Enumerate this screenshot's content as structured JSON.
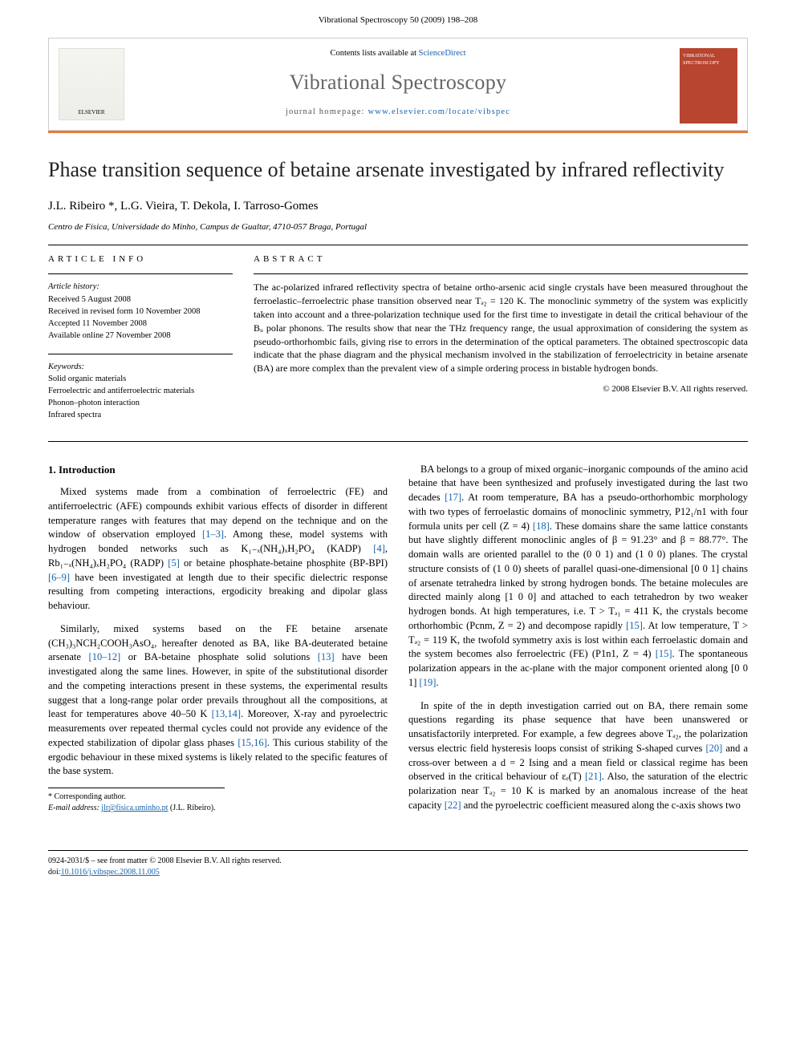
{
  "header": {
    "running": "Vibrational Spectroscopy 50 (2009) 198–208",
    "contents_prefix": "Contents lists available at ",
    "contents_link": "ScienceDirect",
    "journal": "Vibrational Spectroscopy",
    "homepage_prefix": "journal homepage: ",
    "homepage": "www.elsevier.com/locate/vibspec",
    "elsevier": "ELSEVIER",
    "cover_text": "VIBRATIONAL SPECTROSCOPY"
  },
  "article": {
    "title": "Phase transition sequence of betaine arsenate investigated by infrared reflectivity",
    "authors": "J.L. Ribeiro *, L.G. Vieira, T. Dekola, I. Tarroso-Gomes",
    "affiliation": "Centro de Física, Universidade do Minho, Campus de Gualtar, 4710-057 Braga, Portugal"
  },
  "info": {
    "head": "ARTICLE INFO",
    "history_label": "Article history:",
    "history": [
      "Received 5 August 2008",
      "Received in revised form 10 November 2008",
      "Accepted 11 November 2008",
      "Available online 27 November 2008"
    ],
    "keywords_label": "Keywords:",
    "keywords": [
      "Solid organic materials",
      "Ferroelectric and antiferroelectric materials",
      "Phonon–photon interaction",
      "Infrared spectra"
    ]
  },
  "abstract": {
    "head": "ABSTRACT",
    "text": "The ac-polarized infrared reflectivity spectra of betaine ortho-arsenic acid single crystals have been measured throughout the ferroelastic–ferroelectric phase transition observed near Tₔ₂ = 120 K. The monoclinic symmetry of the system was explicitly taken into account and a three-polarization technique used for the first time to investigate in detail the critical behaviour of the Bᵤ polar phonons. The results show that near the THz frequency range, the usual approximation of considering the system as pseudo-orthorhombic fails, giving rise to errors in the determination of the optical parameters. The obtained spectroscopic data indicate that the phase diagram and the physical mechanism involved in the stabilization of ferroelectricity in betaine arsenate (BA) are more complex than the prevalent view of a simple ordering process in bistable hydrogen bonds.",
    "copyright": "© 2008 Elsevier B.V. All rights reserved."
  },
  "body": {
    "section1_head": "1. Introduction",
    "p1": "Mixed systems made from a combination of ferroelectric (FE) and antiferroelectric (AFE) compounds exhibit various effects of disorder in different temperature ranges with features that may depend on the technique and on the window of observation employed [1–3]. Among these, model systems with hydrogen bonded networks such as K₁₋ₓ(NH₄)ₓH₂PO₄ (KADP) [4], Rb₁₋ₓ(NH₄)ₓH₂PO₄ (RADP) [5] or betaine phosphate-betaine phosphite (BP-BPI) [6–9] have been investigated at length due to their specific dielectric response resulting from competing interactions, ergodicity breaking and dipolar glass behaviour.",
    "p2": "Similarly, mixed systems based on the FE betaine arsenate (CH₃)₃NCH₂COOH₃AsO₄, hereafter denoted as BA, like BA-deuterated betaine arsenate [10–12] or BA-betaine phosphate solid solutions [13] have been investigated along the same lines. However, in spite of the substitutional disorder and the competing interactions present in these systems, the experimental results suggest that a long-range polar order prevails throughout all the compositions, at least for temperatures above 40–50 K [13,14]. Moreover, X-ray and pyroelectric measurements over repeated thermal cycles could not provide any evidence of the expected stabilization of dipolar glass phases [15,16]. This curious stability of the ergodic behaviour in these mixed systems is likely related to the specific features of the base system.",
    "p3": "BA belongs to a group of mixed organic–inorganic compounds of the amino acid betaine that have been synthesized and profusely investigated during the last two decades [17]. At room temperature, BA has a pseudo-orthorhombic morphology with two types of ferroelastic domains of monoclinic symmetry, P12₁/n1 with four formula units per cell (Z = 4) [18]. These domains share the same lattice constants but have slightly different monoclinic angles of β = 91.23° and β = 88.77°. The domain walls are oriented parallel to the (0 0 1) and (1 0 0) planes. The crystal structure consists of (1 0 0) sheets of parallel quasi-one-dimensional [0 0 1] chains of arsenate tetrahedra linked by strong hydrogen bonds. The betaine molecules are directed mainly along [1 0 0] and attached to each tetrahedron by two weaker hydrogen bonds. At high temperatures, i.e. T > Tₔ₁ = 411 K, the crystals become orthorhombic (Pcnm, Z = 2) and decompose rapidly [15]. At low temperature, T > Tₔ₂ = 119 K, the twofold symmetry axis is lost within each ferroelastic domain and the system becomes also ferroelectric (FE) (P1n1, Z = 4) [15]. The spontaneous polarization appears in the ac-plane with the major component oriented along [0 0 1] [19].",
    "p4": "In spite of the in depth investigation carried out on BA, there remain some questions regarding its phase sequence that have been unanswered or unsatisfactorily interpreted. For example, a few degrees above Tₔ₂, the polarization versus electric field hysteresis loops consist of striking S-shaped curves [20] and a cross-over between a d = 2 Ising and a mean field or classical regime has been observed in the critical behaviour of εₑ(T) [21]. Also, the saturation of the electric polarization near Tₔ₂ = 10 K is marked by an anomalous increase of the heat capacity [22] and the pyroelectric coefficient measured along the c-axis shows two"
  },
  "footnote": {
    "corr": "* Corresponding author.",
    "email_label": "E-mail address: ",
    "email": "jlr@fisica.uminho.pt",
    "email_suffix": " (J.L. Ribeiro)."
  },
  "footer": {
    "left1": "0924-2031/$ – see front matter © 2008 Elsevier B.V. All rights reserved.",
    "left2": "doi:",
    "doi": "10.1016/j.vibspec.2008.11.005"
  },
  "colors": {
    "rule": "#e77b3a",
    "link": "#1562ad",
    "cover": "#b8452f",
    "title_grey": "#666666"
  }
}
